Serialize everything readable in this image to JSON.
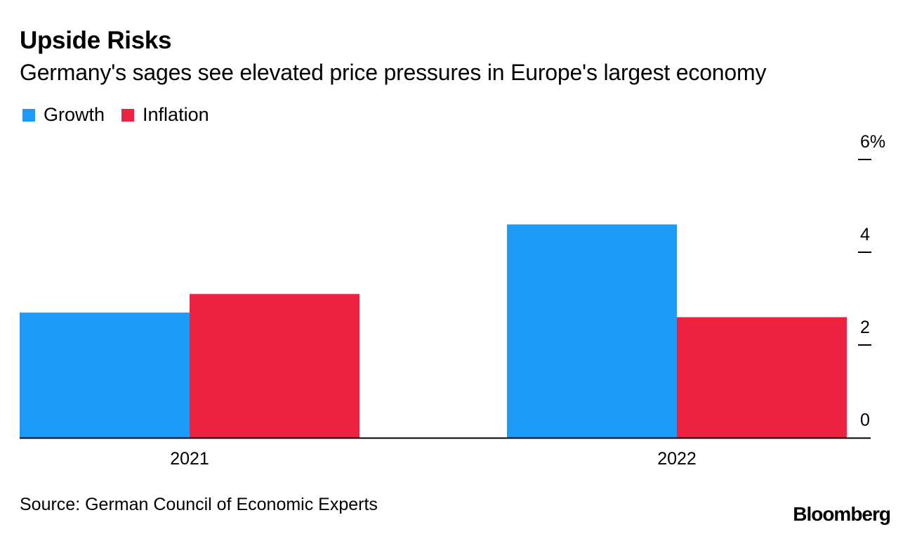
{
  "header": {
    "title": "Upside Risks",
    "subtitle": "Germany's sages see elevated price pressures in Europe's largest economy"
  },
  "legend": {
    "items": [
      {
        "label": "Growth",
        "color": "#1c9bf9"
      },
      {
        "label": "Inflation",
        "color": "#ed2140"
      }
    ]
  },
  "footer": {
    "source": "Source: German Council of Economic Experts",
    "brand": "Bloomberg"
  },
  "chart_data": {
    "type": "bar",
    "title": "Upside Risks",
    "subtitle": "Germany's sages see elevated price pressures in Europe's largest economy",
    "categories": [
      "2021",
      "2022"
    ],
    "series": [
      {
        "name": "Growth",
        "color": "#1c9bf9",
        "values": [
          2.7,
          4.6
        ]
      },
      {
        "name": "Inflation",
        "color": "#ed2140",
        "values": [
          3.1,
          2.6
        ]
      }
    ],
    "ylim": [
      0,
      6
    ],
    "yticks": [
      {
        "value": 0,
        "label": "0"
      },
      {
        "value": 2,
        "label": "2"
      },
      {
        "value": 4,
        "label": "4"
      },
      {
        "value": 6,
        "label": "6%"
      }
    ],
    "xlabel": "",
    "ylabel": "",
    "yaxis_side": "right",
    "legend_position": "top-left"
  }
}
